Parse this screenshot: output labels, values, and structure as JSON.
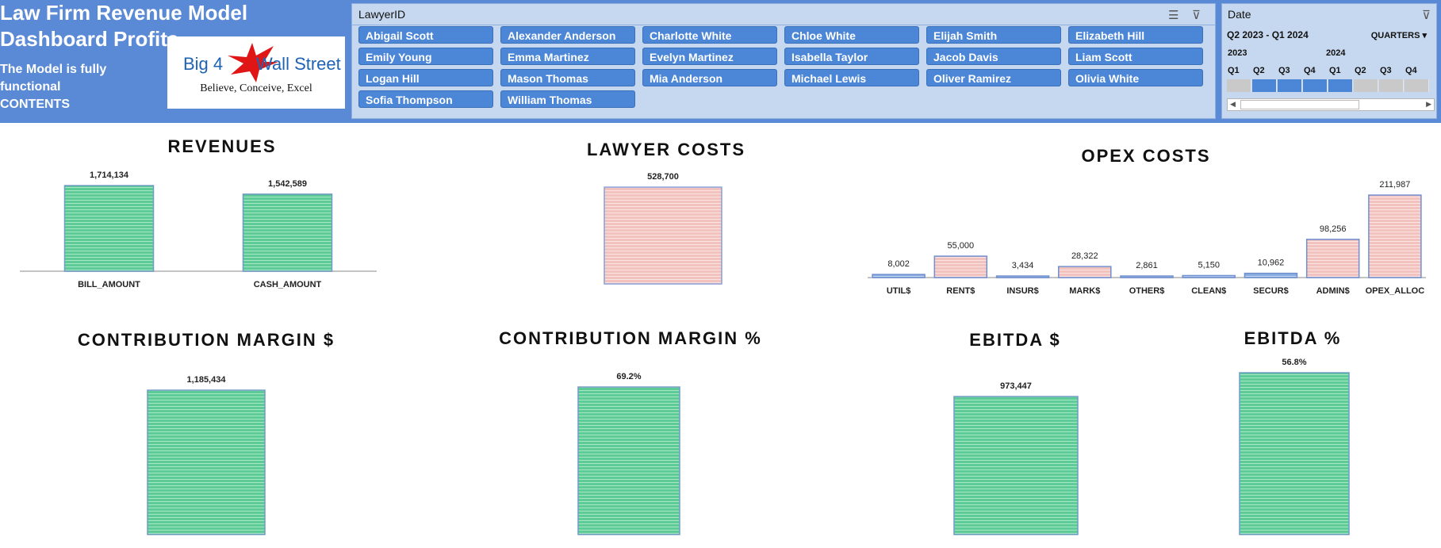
{
  "header": {
    "title": "Law Firm Revenue Model Dashboard Profits",
    "line1": "The Model is fully functional",
    "line2": "CONTENTS",
    "logo": {
      "left": "Big 4",
      "right": "Wall Street",
      "tagline": "Believe, Conceive, Excel"
    }
  },
  "slicer": {
    "title": "LawyerID",
    "items": [
      "Abigail Scott",
      "Alexander Anderson",
      "Charlotte White",
      "Chloe White",
      "Elijah Smith",
      "Elizabeth Hill",
      "Emily Young",
      "Emma Martinez",
      "Evelyn Martinez",
      "Isabella Taylor",
      "Jacob Davis",
      "Liam Scott",
      "Logan Hill",
      "Mason Thomas",
      "Mia Anderson",
      "Michael Lewis",
      "Oliver Ramirez",
      "Olivia White",
      "Sofia Thompson",
      "William Thomas"
    ]
  },
  "timeline": {
    "title": "Date",
    "range": "Q2 2023 - Q1 2024",
    "period": "QUARTERS",
    "years": [
      "2023",
      "2024"
    ],
    "quarters": [
      "Q1",
      "Q2",
      "Q3",
      "Q4",
      "Q1",
      "Q2",
      "Q3",
      "Q4"
    ],
    "selected": [
      false,
      true,
      true,
      true,
      true,
      false,
      false,
      false
    ]
  },
  "chart_data": [
    {
      "id": "revenues",
      "type": "bar",
      "title": "REVENUES",
      "categories": [
        "BILL_AMOUNT",
        "CASH_AMOUNT"
      ],
      "values": [
        1714134,
        1542589
      ],
      "labels": [
        "1,714,134",
        "1,542,589"
      ]
    },
    {
      "id": "lawyer",
      "type": "bar",
      "title": "LAWYER COSTS",
      "categories": [],
      "values": [
        528700
      ],
      "labels": [
        "528,700"
      ]
    },
    {
      "id": "opex",
      "type": "bar",
      "title": "OPEX COSTS",
      "categories": [
        "UTIL$",
        "RENT$",
        "INSUR$",
        "MARK$",
        "OTHER$",
        "CLEAN$",
        "SECUR$",
        "ADMIN$",
        "OPEX_ALLOC"
      ],
      "values": [
        8002,
        55000,
        3434,
        28322,
        2861,
        5150,
        10962,
        98256,
        211987
      ],
      "labels": [
        "8,002",
        "55,000",
        "3,434",
        "28,322",
        "2,861",
        "5,150",
        "10,962",
        "98,256",
        "211,987"
      ]
    },
    {
      "id": "cm",
      "type": "bar",
      "title": "CONTRIBUTION MARGIN $",
      "categories": [],
      "values": [
        1185434
      ],
      "labels": [
        "1,185,434"
      ]
    },
    {
      "id": "cmpct",
      "type": "bar",
      "title": "CONTRIBUTION MARGIN %",
      "categories": [],
      "values": [
        0.692
      ],
      "labels": [
        "69.2%"
      ]
    },
    {
      "id": "ebitda",
      "type": "bar",
      "title": "EBITDA $",
      "categories": [],
      "values": [
        973447
      ],
      "labels": [
        "973,447"
      ]
    },
    {
      "id": "ebitdapct",
      "type": "bar",
      "title": "EBITDA %",
      "categories": [],
      "values": [
        0.568
      ],
      "labels": [
        "56.8%"
      ]
    }
  ],
  "colors": {
    "header": "#5a8ad6",
    "green": "#5ccb96",
    "pink": "#f4c7c3",
    "blue": "#8aaee0"
  }
}
